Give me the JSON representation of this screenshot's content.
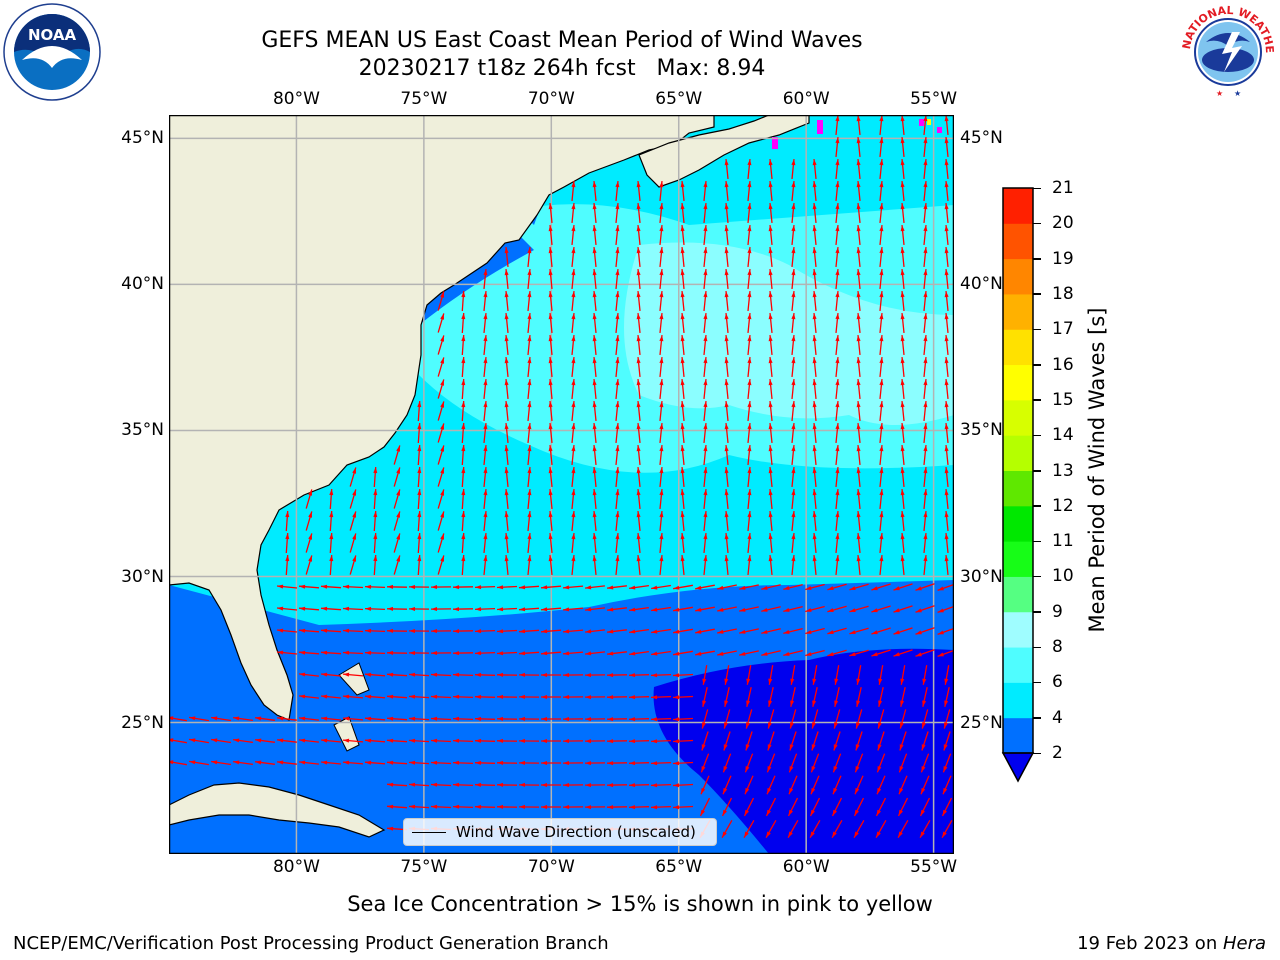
{
  "title": {
    "line1": "GEFS MEAN US East Coast Mean Period of Wind Waves",
    "line2": "20230217 t18z 264h fcst   Max: 8.94"
  },
  "logos": {
    "left_name": "noaa-logo",
    "left_text": "NOAA",
    "left_ring_text": "NATIONAL OCEANIC AND ATMOSPHERIC ADMINISTRATION · U.S. DEPARTMENT OF COMMERCE",
    "right_name": "nws-logo",
    "right_ring_text": "NATIONAL WEATHER SERVICE"
  },
  "map": {
    "lon_labels": [
      "80°W",
      "75°W",
      "70°W",
      "65°W",
      "60°W",
      "55°W"
    ],
    "lat_labels": [
      "45°N",
      "40°N",
      "35°N",
      "30°N",
      "25°N"
    ],
    "lon_values": [
      -80,
      -75,
      -70,
      -65,
      -60,
      -55
    ],
    "lat_values": [
      45,
      40,
      35,
      30,
      25
    ],
    "extent": {
      "lon_min": -85,
      "lon_max": -54.2,
      "lat_min": 20.5,
      "lat_max": 45.8
    },
    "land_color": "#efefdb",
    "grid_color": "#b3b3b3",
    "arrow_color": "#ff0000",
    "legend_label": "Wind Wave Direction (unscaled)"
  },
  "colorbar": {
    "label": "Mean Period of Wind Waves [s]",
    "ticks": [
      "2",
      "4",
      "6",
      "8",
      "9",
      "10",
      "11",
      "12",
      "13",
      "14",
      "15",
      "16",
      "17",
      "18",
      "19",
      "20",
      "21"
    ],
    "colors": [
      "#0070ff",
      "#00ebff",
      "#4ffdff",
      "#9ffdff",
      "#55ff82",
      "#17fd17",
      "#00e800",
      "#5fe800",
      "#b5ff00",
      "#d7ff00",
      "#ffff00",
      "#ffe100",
      "#ffb100",
      "#ff8600",
      "#ff5300",
      "#ff2000"
    ],
    "under_color": "#0000ee"
  },
  "caption": "Sea Ice Concentration > 15% is shown in pink to yellow",
  "footer": {
    "left": "NCEP/EMC/Verification Post Processing Product Generation Branch",
    "right_prefix": "19 Feb 2023 on ",
    "right_italic": "Hera"
  }
}
